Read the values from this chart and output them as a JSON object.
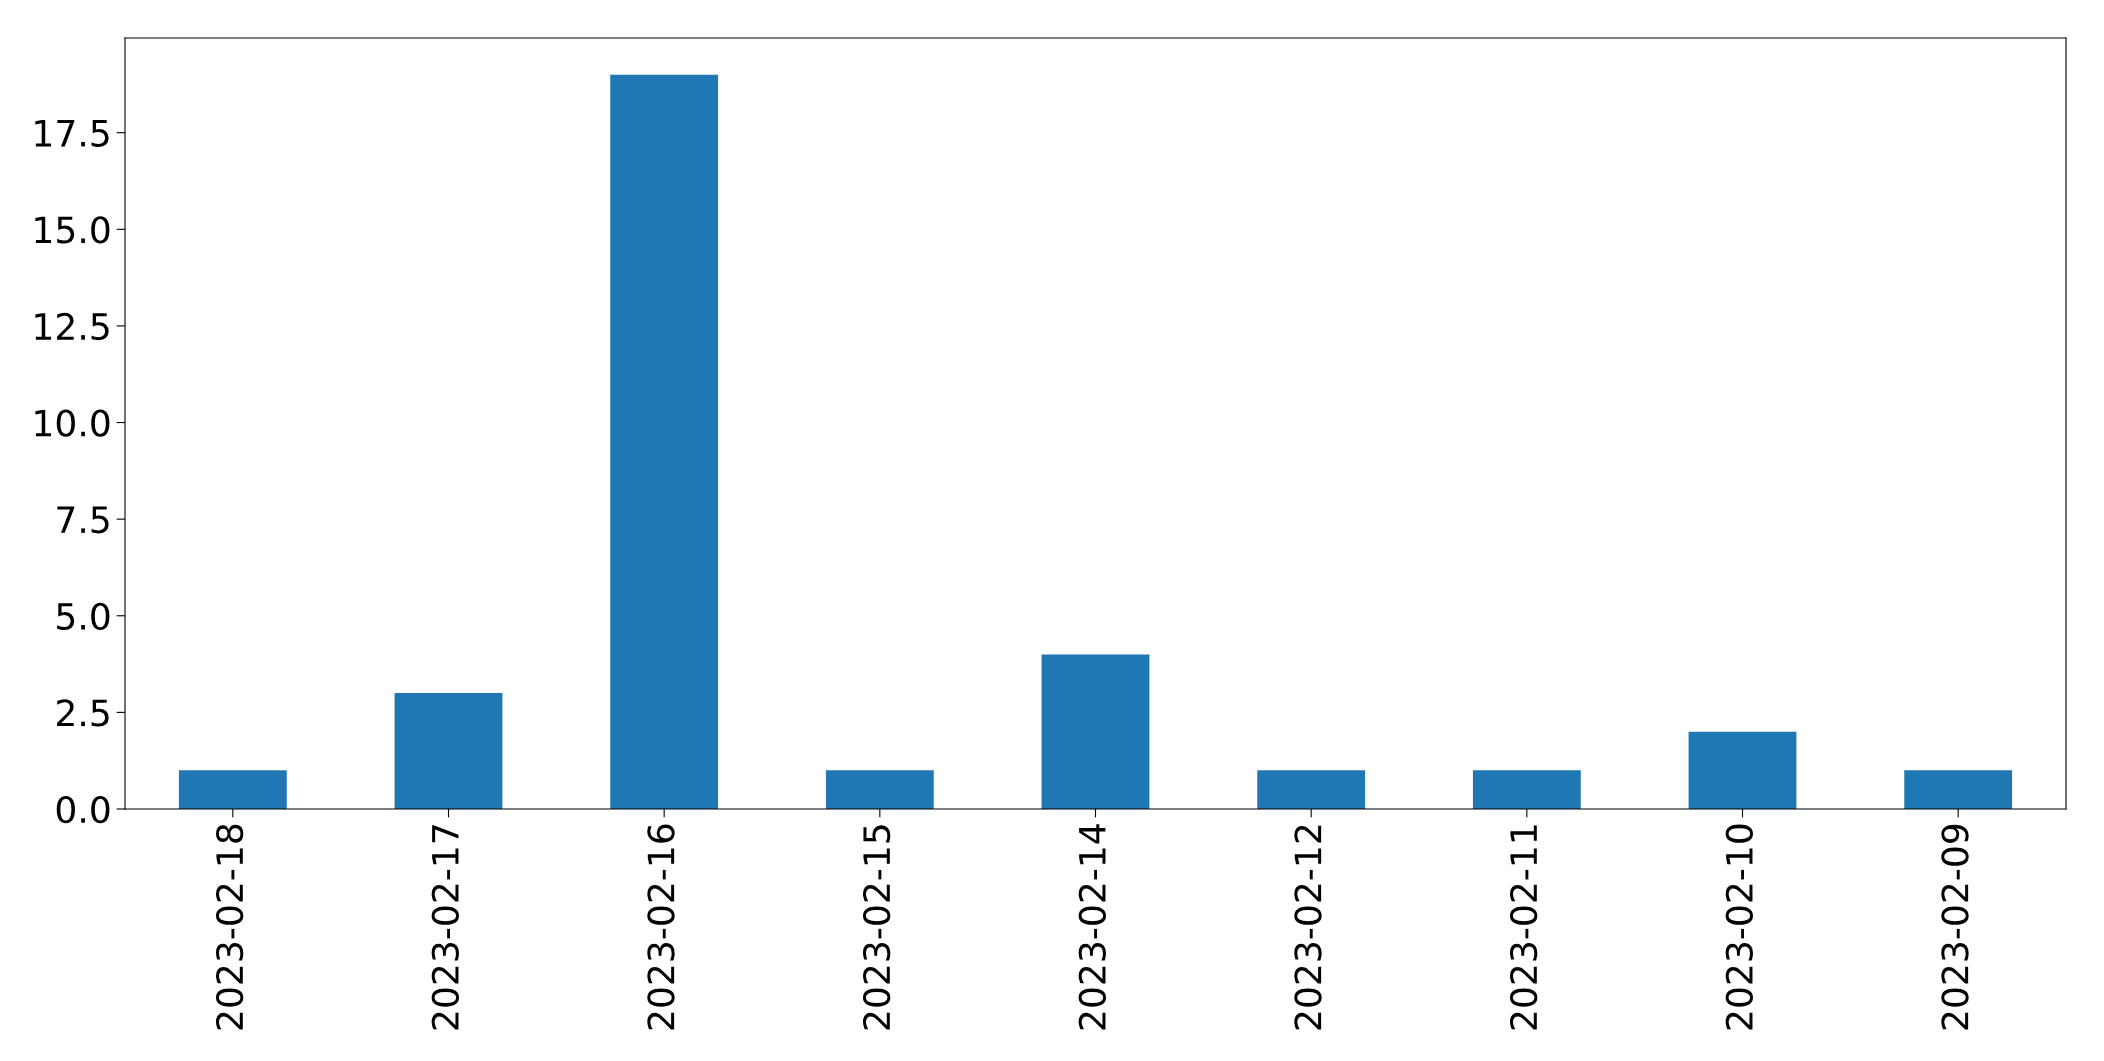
{
  "chart_data": {
    "type": "bar",
    "categories": [
      "2023-02-18",
      "2023-02-17",
      "2023-02-16",
      "2023-02-15",
      "2023-02-14",
      "2023-02-12",
      "2023-02-11",
      "2023-02-10",
      "2023-02-09"
    ],
    "values": [
      1,
      3,
      19,
      1,
      4,
      1,
      1,
      2,
      1
    ],
    "color": "#1f77b4",
    "ylim": [
      0,
      19.95
    ],
    "yticks": [
      {
        "value": 0,
        "label": "0.0"
      },
      2.5,
      {
        "value": 5,
        "label": "5.0"
      },
      7.5,
      {
        "value": 10,
        "label": "10.0"
      },
      12.5,
      {
        "value": 15,
        "label": "15.0"
      },
      17.5
    ],
    "grid": false
  }
}
